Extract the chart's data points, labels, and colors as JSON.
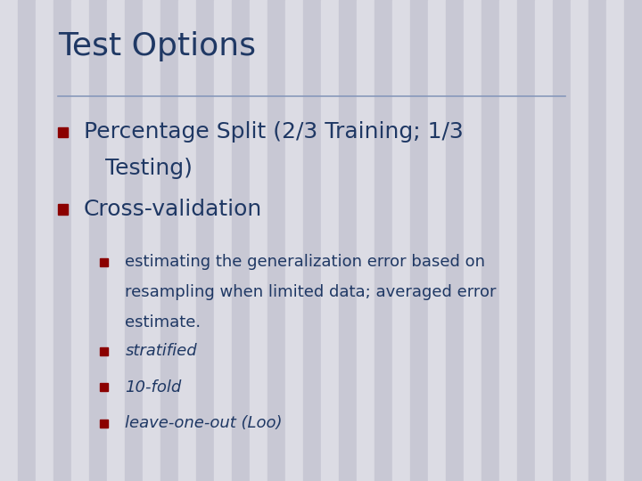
{
  "title": "Test Options",
  "title_color": "#1F3864",
  "title_fontsize": 26,
  "background_color_light": "#DCDCE4",
  "background_color_dark": "#C8C8D4",
  "stripe_count": 36,
  "divider_color": "#8899BB",
  "bullet_color": "#8B0000",
  "bullet1_line1": "Percentage Split (2/3 Training; 1/3",
  "bullet1_line2": "   Testing)",
  "bullet2_text": "Cross-validation",
  "bullet1_fontsize": 18,
  "bullet2_fontsize": 18,
  "text_color": "#1F3864",
  "sub_bullet_color": "#8B0000",
  "sub_bullet1_line1": "estimating the generalization error based on",
  "sub_bullet1_line2": "resampling when limited data; averaged error",
  "sub_bullet1_line3": "estimate.",
  "sub_bullet2_text": "stratified",
  "sub_bullet3_text": "10-fold",
  "sub_bullet4_text": "leave-one-out (Loo)",
  "sub_fontsize": 13,
  "sub_text_color": "#1F3864",
  "fig_width": 7.2,
  "fig_height": 5.4,
  "dpi": 100
}
